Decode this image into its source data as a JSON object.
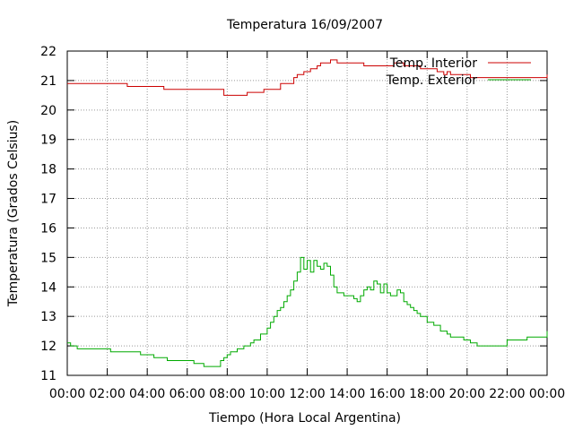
{
  "chart_data": {
    "type": "line",
    "title": "Temperatura 16/09/2007",
    "xlabel": "Tiempo (Hora Local Argentina)",
    "ylabel": "Temperatura (Grados Celsius)",
    "xlim": [
      "00:00",
      "24:00"
    ],
    "ylim": [
      11,
      22
    ],
    "x_ticks": [
      "00:00",
      "02:00",
      "04:00",
      "06:00",
      "08:00",
      "10:00",
      "12:00",
      "14:00",
      "16:00",
      "18:00",
      "20:00",
      "22:00",
      "00:00"
    ],
    "y_ticks": [
      "11",
      "12",
      "13",
      "14",
      "15",
      "16",
      "17",
      "18",
      "19",
      "20",
      "21",
      "22"
    ],
    "grid": true,
    "legend_position": "top-right",
    "series": [
      {
        "name": "Temp. Interior",
        "color": "#cc0000",
        "step": true,
        "points": [
          [
            "00:00",
            20.9
          ],
          [
            "02:50",
            20.9
          ],
          [
            "03:00",
            20.8
          ],
          [
            "04:40",
            20.8
          ],
          [
            "04:50",
            20.7
          ],
          [
            "07:40",
            20.7
          ],
          [
            "07:50",
            20.5
          ],
          [
            "08:50",
            20.5
          ],
          [
            "09:00",
            20.6
          ],
          [
            "09:40",
            20.6
          ],
          [
            "09:50",
            20.7
          ],
          [
            "10:30",
            20.7
          ],
          [
            "10:40",
            20.9
          ],
          [
            "11:10",
            20.9
          ],
          [
            "11:20",
            21.1
          ],
          [
            "11:30",
            21.2
          ],
          [
            "11:50",
            21.3
          ],
          [
            "12:10",
            21.4
          ],
          [
            "12:30",
            21.5
          ],
          [
            "12:40",
            21.6
          ],
          [
            "13:00",
            21.6
          ],
          [
            "13:10",
            21.7
          ],
          [
            "13:30",
            21.6
          ],
          [
            "14:40",
            21.6
          ],
          [
            "14:50",
            21.5
          ],
          [
            "16:10",
            21.5
          ],
          [
            "16:20",
            21.6
          ],
          [
            "16:40",
            21.6
          ],
          [
            "16:50",
            21.5
          ],
          [
            "17:30",
            21.5
          ],
          [
            "17:40",
            21.4
          ],
          [
            "18:20",
            21.4
          ],
          [
            "18:30",
            21.3
          ],
          [
            "18:40",
            21.3
          ],
          [
            "18:50",
            21.2
          ],
          [
            "19:00",
            21.3
          ],
          [
            "19:10",
            21.2
          ],
          [
            "20:00",
            21.2
          ],
          [
            "20:10",
            21.1
          ],
          [
            "23:50",
            21.1
          ],
          [
            "24:00",
            21.2
          ]
        ]
      },
      {
        "name": "Temp. Exterior",
        "color": "#00aa00",
        "step": true,
        "points": [
          [
            "00:00",
            12.1
          ],
          [
            "00:10",
            12.0
          ],
          [
            "00:30",
            11.9
          ],
          [
            "02:00",
            11.9
          ],
          [
            "02:10",
            11.8
          ],
          [
            "03:30",
            11.8
          ],
          [
            "03:40",
            11.7
          ],
          [
            "04:10",
            11.7
          ],
          [
            "04:20",
            11.6
          ],
          [
            "04:50",
            11.6
          ],
          [
            "05:00",
            11.5
          ],
          [
            "06:10",
            11.5
          ],
          [
            "06:20",
            11.4
          ],
          [
            "06:40",
            11.4
          ],
          [
            "06:50",
            11.3
          ],
          [
            "07:30",
            11.3
          ],
          [
            "07:40",
            11.5
          ],
          [
            "07:50",
            11.6
          ],
          [
            "08:00",
            11.7
          ],
          [
            "08:10",
            11.8
          ],
          [
            "08:30",
            11.9
          ],
          [
            "08:50",
            12.0
          ],
          [
            "09:10",
            12.1
          ],
          [
            "09:20",
            12.2
          ],
          [
            "09:40",
            12.4
          ],
          [
            "10:00",
            12.6
          ],
          [
            "10:10",
            12.8
          ],
          [
            "10:20",
            13.0
          ],
          [
            "10:30",
            13.2
          ],
          [
            "10:40",
            13.3
          ],
          [
            "10:50",
            13.5
          ],
          [
            "11:00",
            13.7
          ],
          [
            "11:10",
            13.9
          ],
          [
            "11:20",
            14.2
          ],
          [
            "11:30",
            14.5
          ],
          [
            "11:40",
            15.0
          ],
          [
            "11:50",
            14.6
          ],
          [
            "12:00",
            14.9
          ],
          [
            "12:10",
            14.5
          ],
          [
            "12:20",
            14.9
          ],
          [
            "12:30",
            14.7
          ],
          [
            "12:40",
            14.6
          ],
          [
            "12:50",
            14.8
          ],
          [
            "13:00",
            14.7
          ],
          [
            "13:10",
            14.4
          ],
          [
            "13:20",
            14.0
          ],
          [
            "13:30",
            13.8
          ],
          [
            "13:50",
            13.7
          ],
          [
            "14:10",
            13.7
          ],
          [
            "14:20",
            13.6
          ],
          [
            "14:30",
            13.5
          ],
          [
            "14:40",
            13.7
          ],
          [
            "14:50",
            13.9
          ],
          [
            "15:00",
            14.0
          ],
          [
            "15:10",
            13.9
          ],
          [
            "15:20",
            14.2
          ],
          [
            "15:30",
            14.1
          ],
          [
            "15:40",
            13.8
          ],
          [
            "15:50",
            14.1
          ],
          [
            "16:00",
            13.8
          ],
          [
            "16:10",
            13.7
          ],
          [
            "16:30",
            13.9
          ],
          [
            "16:40",
            13.8
          ],
          [
            "16:50",
            13.5
          ],
          [
            "17:00",
            13.4
          ],
          [
            "17:10",
            13.3
          ],
          [
            "17:20",
            13.2
          ],
          [
            "17:30",
            13.1
          ],
          [
            "17:40",
            13.0
          ],
          [
            "18:00",
            12.8
          ],
          [
            "18:20",
            12.7
          ],
          [
            "18:40",
            12.5
          ],
          [
            "19:00",
            12.4
          ],
          [
            "19:10",
            12.3
          ],
          [
            "19:50",
            12.2
          ],
          [
            "20:10",
            12.1
          ],
          [
            "20:30",
            12.0
          ],
          [
            "21:50",
            12.0
          ],
          [
            "22:00",
            12.2
          ],
          [
            "22:50",
            12.2
          ],
          [
            "23:00",
            12.3
          ],
          [
            "23:50",
            12.3
          ],
          [
            "24:00",
            12.5
          ]
        ]
      }
    ]
  }
}
